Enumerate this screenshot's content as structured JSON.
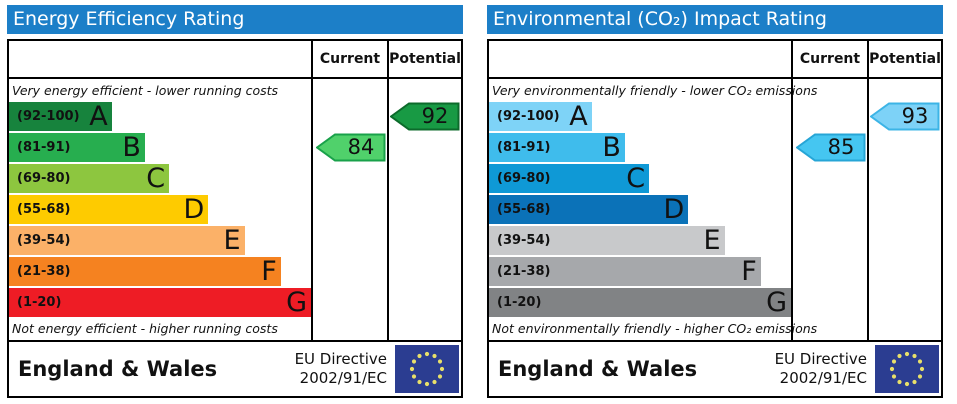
{
  "panels": [
    {
      "title": "Energy Efficiency Rating",
      "columns": {
        "current": "Current",
        "potential": "Potential"
      },
      "top_caption": "Very energy efficient - lower running costs",
      "bottom_caption": "Not energy efficient - higher running costs",
      "bands": [
        {
          "range": "(92-100)",
          "letter": "A",
          "color": "#17833d",
          "width_pct": 34
        },
        {
          "range": "(81-91)",
          "letter": "B",
          "color": "#27ae4f",
          "width_pct": 45
        },
        {
          "range": "(69-80)",
          "letter": "C",
          "color": "#8dc63f",
          "width_pct": 53
        },
        {
          "range": "(55-68)",
          "letter": "D",
          "color": "#fecb00",
          "width_pct": 66
        },
        {
          "range": "(39-54)",
          "letter": "E",
          "color": "#fbb168",
          "width_pct": 78
        },
        {
          "range": "(21-38)",
          "letter": "F",
          "color": "#f58220",
          "width_pct": 90
        },
        {
          "range": "(1-20)",
          "letter": "G",
          "color": "#ee1c25",
          "width_pct": 100
        }
      ],
      "current": {
        "value": "84",
        "band": "B",
        "fill": "#50d16b",
        "border": "#19a14a"
      },
      "potential": {
        "value": "92",
        "band": "A",
        "fill": "#189a44",
        "border": "#0c6b2b"
      },
      "footer": {
        "region": "England & Wales",
        "directive_line1": "EU Directive",
        "directive_line2": "2002/91/EC"
      }
    },
    {
      "title": "Environmental (CO₂) Impact Rating",
      "columns": {
        "current": "Current",
        "potential": "Potential"
      },
      "top_caption": "Very environmentally friendly - lower CO₂ emissions",
      "bottom_caption": "Not environmentally friendly - higher CO₂ emissions",
      "bands": [
        {
          "range": "(92-100)",
          "letter": "A",
          "color": "#7ed3f7",
          "width_pct": 34
        },
        {
          "range": "(81-91)",
          "letter": "B",
          "color": "#3fbcec",
          "width_pct": 45
        },
        {
          "range": "(69-80)",
          "letter": "C",
          "color": "#0f99d6",
          "width_pct": 53
        },
        {
          "range": "(55-68)",
          "letter": "D",
          "color": "#0b72b8",
          "width_pct": 66
        },
        {
          "range": "(39-54)",
          "letter": "E",
          "color": "#c8c9cb",
          "width_pct": 78
        },
        {
          "range": "(21-38)",
          "letter": "F",
          "color": "#a6a8ab",
          "width_pct": 90
        },
        {
          "range": "(1-20)",
          "letter": "G",
          "color": "#818385",
          "width_pct": 100
        }
      ],
      "current": {
        "value": "85",
        "band": "B",
        "fill": "#45c6f1",
        "border": "#26a5d6"
      },
      "potential": {
        "value": "93",
        "band": "A",
        "fill": "#7dd2f7",
        "border": "#3cb4e6"
      },
      "footer": {
        "region": "England & Wales",
        "directive_line1": "EU Directive",
        "directive_line2": "2002/91/EC"
      }
    }
  ],
  "colors": {
    "header_bar": "#1c7fc8",
    "flag_blue": "#2b3d91",
    "flag_stars": "#e8e06a",
    "border": "#000000"
  },
  "chart_data": [
    {
      "type": "bar",
      "title": "Energy Efficiency Rating",
      "categories": [
        "A (92-100)",
        "B (81-91)",
        "C (69-80)",
        "D (55-68)",
        "E (39-54)",
        "F (21-38)",
        "G (1-20)"
      ],
      "values": [
        34,
        45,
        53,
        66,
        78,
        90,
        100
      ],
      "value_note": "relative bar lengths (%), bands are categorical rating ranges",
      "current": 84,
      "current_band": "B",
      "potential": 92,
      "potential_band": "A",
      "xlabel": "",
      "ylabel": "",
      "annotations": [
        "Very energy efficient - lower running costs",
        "Not energy efficient - higher running costs",
        "England & Wales",
        "EU Directive 2002/91/EC"
      ],
      "legend_position": "none",
      "grid": false
    },
    {
      "type": "bar",
      "title": "Environmental (CO₂) Impact Rating",
      "categories": [
        "A (92-100)",
        "B (81-91)",
        "C (69-80)",
        "D (55-68)",
        "E (39-54)",
        "F (21-38)",
        "G (1-20)"
      ],
      "values": [
        34,
        45,
        53,
        66,
        78,
        90,
        100
      ],
      "value_note": "relative bar lengths (%), bands are categorical rating ranges",
      "current": 85,
      "current_band": "B",
      "potential": 93,
      "potential_band": "A",
      "xlabel": "",
      "ylabel": "",
      "annotations": [
        "Very environmentally friendly - lower CO₂ emissions",
        "Not environmentally friendly - higher CO₂ emissions",
        "England & Wales",
        "EU Directive 2002/91/EC"
      ],
      "legend_position": "none",
      "grid": false
    }
  ]
}
